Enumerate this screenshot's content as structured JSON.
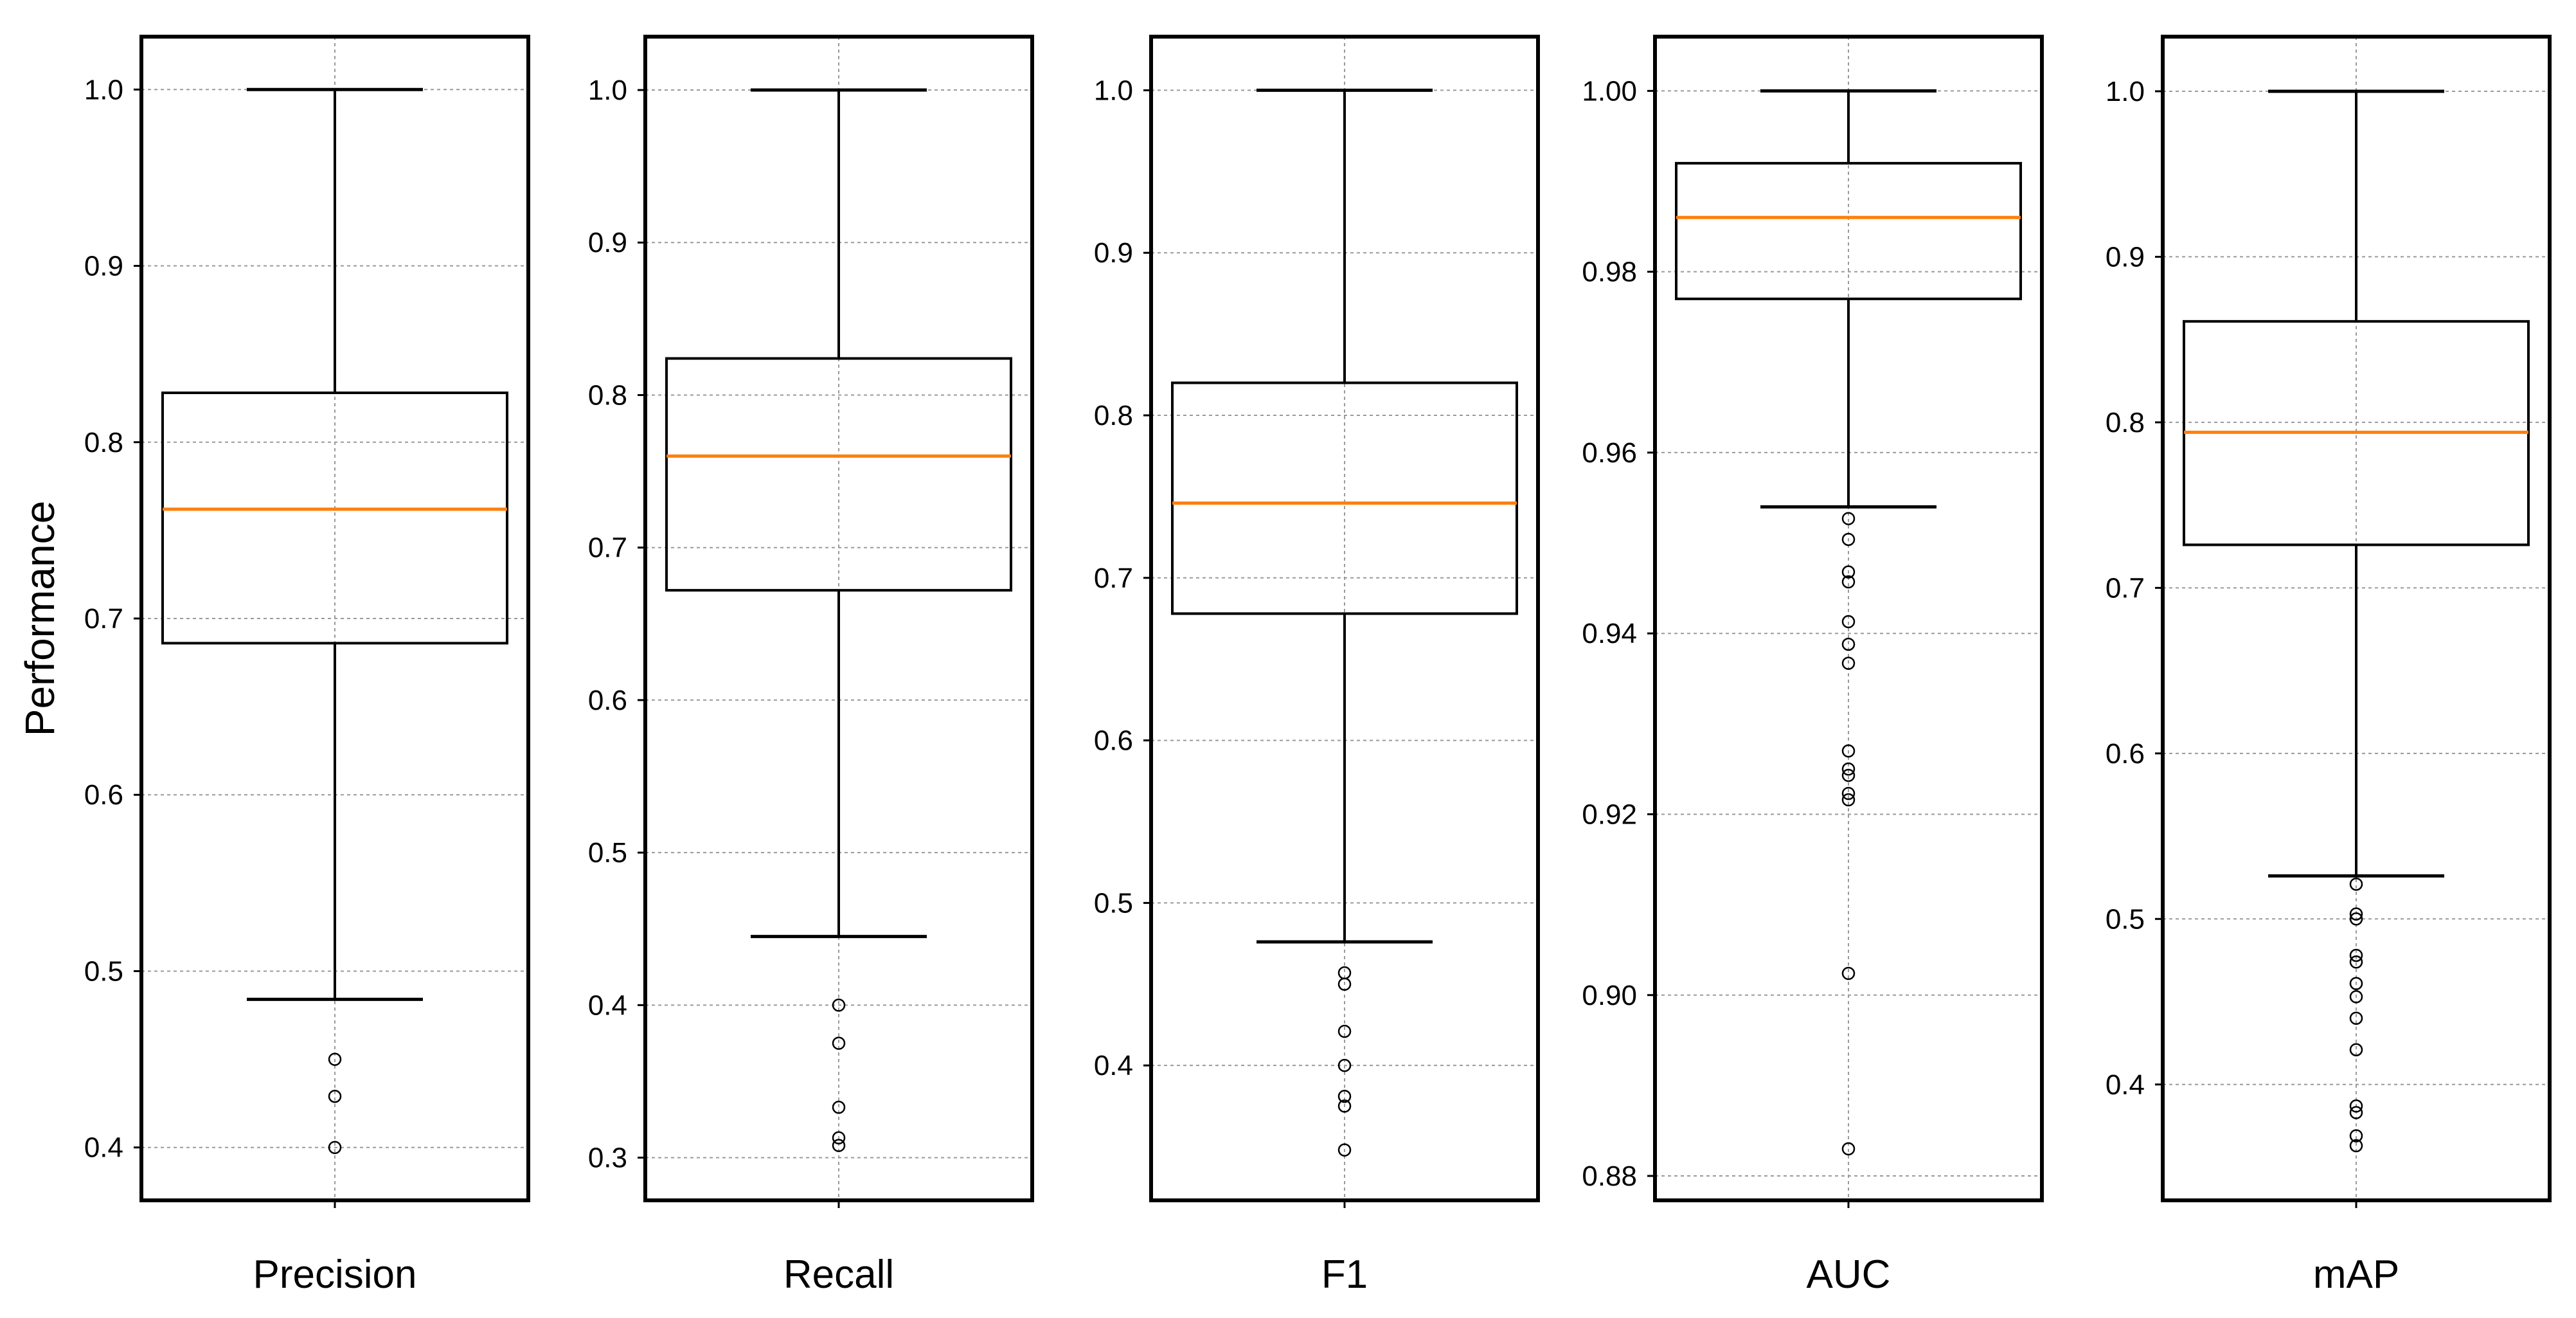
{
  "chart_data": {
    "type": "box",
    "ylabel": "Performance",
    "grid": true,
    "median_color": "#ff7f0e",
    "box_color": "#000000",
    "panels": [
      {
        "category": "Precision",
        "ylim": [
          0.37,
          1.03
        ],
        "ticks": [
          0.4,
          0.5,
          0.6,
          0.7,
          0.8,
          0.9,
          1.0
        ],
        "tick_labels": [
          "0.4",
          "0.5",
          "0.6",
          "0.7",
          "0.8",
          "0.9",
          "1.0"
        ],
        "whisker_low": 0.484,
        "q1": 0.686,
        "median": 0.762,
        "q3": 0.828,
        "whisker_high": 1.0,
        "outliers": [
          0.45,
          0.429,
          0.4
        ]
      },
      {
        "category": "Recall",
        "ylim": [
          0.272,
          1.035
        ],
        "ticks": [
          0.3,
          0.4,
          0.5,
          0.6,
          0.7,
          0.8,
          0.9,
          1.0
        ],
        "tick_labels": [
          "0.3",
          "0.4",
          "0.5",
          "0.6",
          "0.7",
          "0.8",
          "0.9",
          "1.0"
        ],
        "whisker_low": 0.445,
        "q1": 0.672,
        "median": 0.76,
        "q3": 0.824,
        "whisker_high": 1.0,
        "outliers": [
          0.4,
          0.375,
          0.333,
          0.313,
          0.308
        ]
      },
      {
        "category": "F1",
        "ylim": [
          0.317,
          1.033
        ],
        "ticks": [
          0.4,
          0.5,
          0.6,
          0.7,
          0.8,
          0.9,
          1.0
        ],
        "tick_labels": [
          "0.4",
          "0.5",
          "0.6",
          "0.7",
          "0.8",
          "0.9",
          "1.0"
        ],
        "whisker_low": 0.476,
        "q1": 0.678,
        "median": 0.746,
        "q3": 0.82,
        "whisker_high": 1.0,
        "outliers": [
          0.457,
          0.45,
          0.421,
          0.4,
          0.381,
          0.375,
          0.348
        ]
      },
      {
        "category": "AUC",
        "ylim": [
          0.8773,
          1.006
        ],
        "ticks": [
          0.88,
          0.9,
          0.92,
          0.94,
          0.96,
          0.98,
          1.0
        ],
        "tick_labels": [
          "0.88",
          "0.90",
          "0.92",
          "0.94",
          "0.96",
          "0.98",
          "1.00"
        ],
        "whisker_low": 0.954,
        "q1": 0.977,
        "median": 0.986,
        "q3": 0.992,
        "whisker_high": 1.0,
        "outliers": [
          0.9527,
          0.9504,
          0.9468,
          0.9457,
          0.9413,
          0.9388,
          0.9367,
          0.927,
          0.925,
          0.9243,
          0.9223,
          0.9216,
          0.9024,
          0.883
        ]
      },
      {
        "category": "mAP",
        "ylim": [
          0.33,
          1.033
        ],
        "ticks": [
          0.4,
          0.5,
          0.6,
          0.7,
          0.8,
          0.9,
          1.0
        ],
        "tick_labels": [
          "0.4",
          "0.5",
          "0.6",
          "0.7",
          "0.8",
          "0.9",
          "1.0"
        ],
        "whisker_low": 0.526,
        "q1": 0.726,
        "median": 0.794,
        "q3": 0.861,
        "whisker_high": 1.0,
        "outliers": [
          0.521,
          0.503,
          0.5,
          0.478,
          0.474,
          0.461,
          0.453,
          0.44,
          0.421,
          0.387,
          0.383,
          0.369,
          0.363
        ]
      }
    ]
  }
}
